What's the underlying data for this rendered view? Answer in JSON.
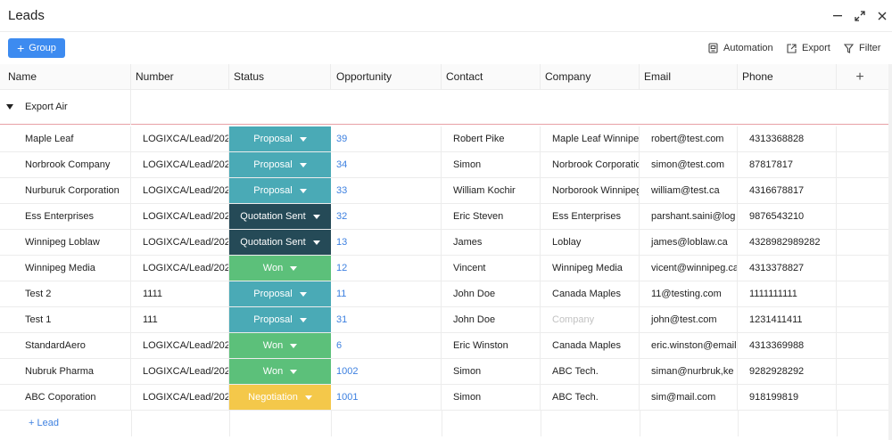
{
  "window": {
    "title": "Leads"
  },
  "toolbar": {
    "group_label": "Group",
    "automation_label": "Automation",
    "export_label": "Export",
    "filter_label": "Filter"
  },
  "columns": [
    "Name",
    "Number",
    "Status",
    "Opportunity",
    "Contact",
    "Company",
    "Email",
    "Phone"
  ],
  "group": {
    "name": "Export Air"
  },
  "status_colors": {
    "Proposal": "#4aaab6",
    "Quotation Sent": "#254a57",
    "Won": "#5cc07a",
    "Negotiation": "#f4c84a"
  },
  "rows": [
    {
      "name": "Maple Leaf",
      "number": "LOGIXCA/Lead/202",
      "status": "Proposal",
      "opportunity": "39",
      "contact": "Robert Pike",
      "company": "Maple Leaf Winnipeg",
      "email": "robert@test.com",
      "phone": "4313368828"
    },
    {
      "name": "Norbrook Company",
      "number": "LOGIXCA/Lead/202",
      "status": "Proposal",
      "opportunity": "34",
      "contact": "Simon",
      "company": "Norbrook Corporation",
      "email": "simon@test.com",
      "phone": "87817817"
    },
    {
      "name": "Nurburuk Corporation",
      "number": "LOGIXCA/Lead/202",
      "status": "Proposal",
      "opportunity": "33",
      "contact": "William Kochir",
      "company": "Norborook Winnipeg",
      "email": "william@test.ca",
      "phone": "4316678817"
    },
    {
      "name": "Ess Enterprises",
      "number": "LOGIXCA/Lead/202",
      "status": "Quotation Sent",
      "opportunity": "32",
      "contact": "Eric Steven",
      "company": "Ess Enterprises",
      "email": "parshant.saini@log",
      "phone": "9876543210"
    },
    {
      "name": "Winnipeg Loblaw",
      "number": "LOGIXCA/Lead/202",
      "status": "Quotation Sent",
      "opportunity": "13",
      "contact": "James",
      "company": "Loblay",
      "email": "james@loblaw.ca",
      "phone": "4328982989282"
    },
    {
      "name": "Winnipeg Media",
      "number": "LOGIXCA/Lead/202",
      "status": "Won",
      "opportunity": "12",
      "contact": "Vincent",
      "company": "Winnipeg Media",
      "email": "vicent@winnipeg.ca",
      "phone": "4313378827"
    },
    {
      "name": "Test 2",
      "number": "1111",
      "status": "Proposal",
      "opportunity": "11",
      "contact": "John Doe",
      "company": "Canada Maples",
      "email": "11@testing.com",
      "phone": "1111111111"
    },
    {
      "name": "Test 1",
      "number": "111",
      "status": "Proposal",
      "opportunity": "31",
      "contact": "John Doe",
      "company": "Company",
      "email": "john@test.com",
      "phone": "1231411411"
    },
    {
      "name": "StandardAero",
      "number": "LOGIXCA/Lead/202",
      "status": "Won",
      "opportunity": "6",
      "contact": "Eric Winston",
      "company": "Canada Maples",
      "email": "eric.winston@email",
      "phone": "4313369988"
    },
    {
      "name": "Nubruk Pharma",
      "number": "LOGIXCA/Lead/202",
      "status": "Won",
      "opportunity": "1002",
      "contact": "Simon",
      "company": "ABC Tech.",
      "email": "siman@nurbruk,ke",
      "phone": "9282928292"
    },
    {
      "name": "ABC Coporation",
      "number": "LOGIXCA/Lead/202",
      "status": "Negotiation",
      "opportunity": "1001",
      "contact": "Simon",
      "company": "ABC Tech.",
      "email": "sim@mail.com",
      "phone": "918199819"
    }
  ],
  "add_lead_label": "Lead"
}
